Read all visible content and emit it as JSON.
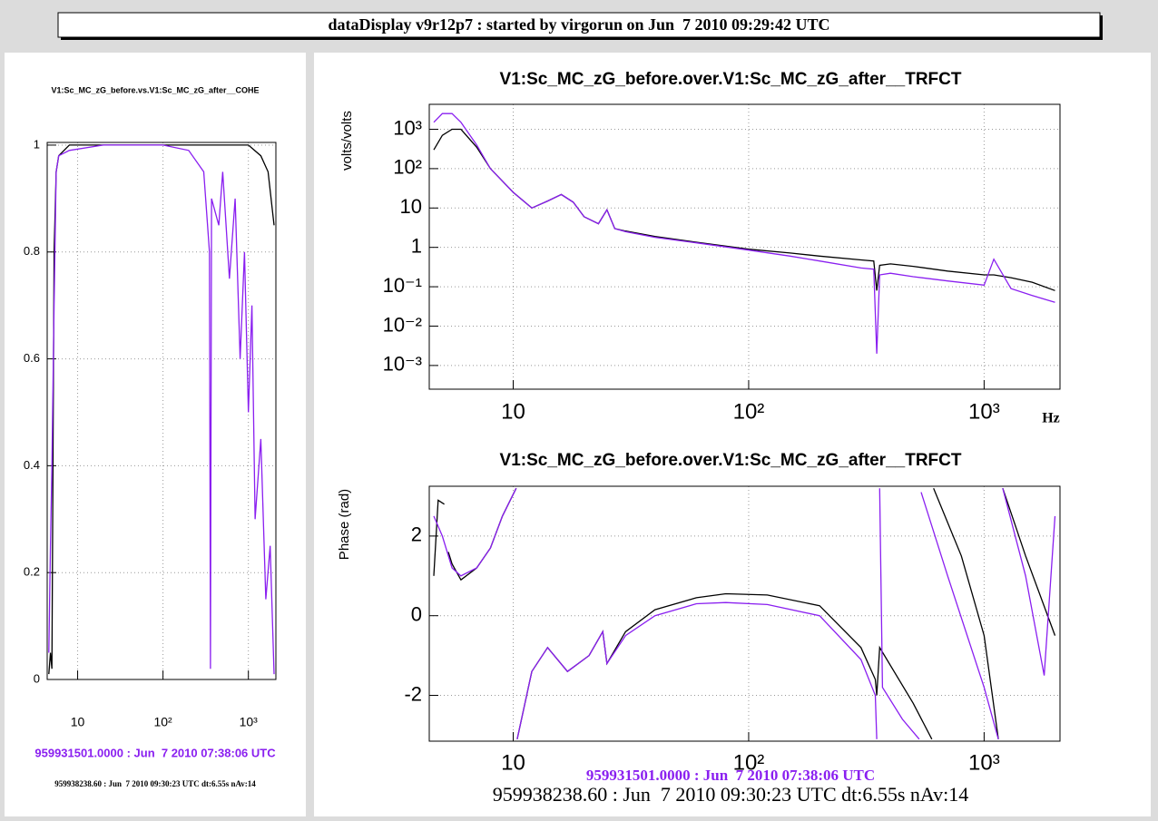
{
  "header": {
    "title": "dataDisplay v9r12p7 : started by virgorun on Jun  7 2010 09:29:42 UTC"
  },
  "chart_data": [
    {
      "type": "line",
      "title": "V1:Sc_MC_zG_before.vs.V1:Sc_MC_zG_after__COHE",
      "xscale": "log",
      "yscale": "linear",
      "grid": true,
      "xlim": [
        4.4,
        2100
      ],
      "ylim": [
        0,
        1.005
      ],
      "xticks": [
        10,
        {
          "value": 100,
          "label": "10²"
        },
        {
          "value": 1000,
          "label": "10³"
        }
      ],
      "yticks": [
        0,
        0.2,
        0.4,
        0.6,
        0.8,
        1
      ],
      "series": [
        {
          "name": "959938238.60 : Jun  7 2010 09:30:23 UTC dt:6.55s nAv:14",
          "color": "#000000",
          "x": [
            4.6,
            4.8,
            5,
            5.3,
            5.6,
            6,
            8,
            100,
            500,
            1000,
            1400,
            1700,
            2000
          ],
          "values": [
            0.01,
            0.05,
            0.02,
            0.8,
            0.95,
            0.98,
            1,
            1,
            1,
            1,
            0.98,
            0.95,
            0.85
          ]
        },
        {
          "name": "959931501.0000 : Jun  7 2010 07:38:06 UTC",
          "color": "#8a1ff0",
          "x": [
            4.6,
            4.8,
            5,
            5.3,
            5.6,
            6,
            8,
            20,
            100,
            200,
            300,
            350,
            360,
            370,
            450,
            500,
            600,
            700,
            800,
            900,
            1000,
            1100,
            1200,
            1400,
            1600,
            1800,
            2000
          ],
          "values": [
            0.05,
            0.25,
            0.4,
            0.7,
            0.95,
            0.98,
            0.99,
            1,
            1,
            0.99,
            0.95,
            0.8,
            0.02,
            0.9,
            0.85,
            0.95,
            0.75,
            0.9,
            0.6,
            0.8,
            0.5,
            0.7,
            0.3,
            0.45,
            0.15,
            0.25,
            0.01
          ]
        }
      ]
    },
    {
      "type": "line",
      "title": "V1:Sc_MC_zG_before.over.V1:Sc_MC_zG_after__TRFCT",
      "ylabel": "volts/volts",
      "xlabel": "Hz",
      "xscale": "log",
      "yscale": "log",
      "grid": true,
      "xlim": [
        4.4,
        2100
      ],
      "ylim": [
        0.00025,
        4300
      ],
      "xticks": [
        10,
        {
          "value": 100,
          "label": "10²"
        },
        {
          "value": 1000,
          "label": "10³"
        }
      ],
      "yticks": [
        {
          "value": 1000,
          "label": "10³"
        },
        {
          "value": 100,
          "label": "10²"
        },
        10,
        1,
        {
          "value": 0.1,
          "label": "10⁻¹"
        },
        {
          "value": 0.01,
          "label": "10⁻²"
        },
        {
          "value": 0.001,
          "label": "10⁻³"
        }
      ],
      "series": [
        {
          "color": "#000000",
          "x": [
            4.6,
            5,
            5.5,
            6,
            7,
            8,
            10,
            12,
            14,
            16,
            18,
            20,
            23,
            25,
            27,
            30,
            40,
            60,
            100,
            150,
            200,
            300,
            340,
            350,
            360,
            400,
            500,
            700,
            1000,
            1100,
            1300,
            1600,
            2000
          ],
          "values": [
            300,
            700,
            1000,
            1000,
            350,
            100,
            25,
            10,
            15,
            22,
            14,
            6,
            4,
            9,
            3,
            2.6,
            1.9,
            1.35,
            0.9,
            0.72,
            0.6,
            0.48,
            0.45,
            0.08,
            0.35,
            0.38,
            0.33,
            0.25,
            0.2,
            0.2,
            0.17,
            0.13,
            0.08
          ]
        },
        {
          "color": "#8a1ff0",
          "x": [
            4.6,
            5,
            5.5,
            6,
            7,
            8,
            10,
            12,
            14,
            16,
            18,
            20,
            23,
            25,
            27,
            30,
            40,
            60,
            100,
            150,
            200,
            300,
            340,
            350,
            360,
            400,
            500,
            700,
            1000,
            1100,
            1300,
            1600,
            2000
          ],
          "values": [
            1500,
            2500,
            2500,
            1500,
            400,
            100,
            25,
            10,
            15,
            22,
            14,
            6,
            4,
            9,
            3,
            2.5,
            1.8,
            1.3,
            0.85,
            0.6,
            0.45,
            0.3,
            0.28,
            0.002,
            0.2,
            0.22,
            0.18,
            0.14,
            0.11,
            0.5,
            0.09,
            0.06,
            0.04
          ]
        }
      ]
    },
    {
      "type": "line",
      "title": "V1:Sc_MC_zG_before.over.V1:Sc_MC_zG_after__TRFCT",
      "ylabel": "Phase (rad)",
      "xscale": "log",
      "yscale": "linear",
      "grid": true,
      "xlim": [
        4.4,
        2100
      ],
      "ylim": [
        -3.15,
        3.25
      ],
      "xticks": [
        10,
        {
          "value": 100,
          "label": "10²"
        },
        {
          "value": 1000,
          "label": "10³"
        }
      ],
      "yticks": [
        -2,
        0,
        2
      ],
      "series": [
        {
          "name": "959938238.60 : Jun  7 2010 09:30:23 UTC dt:6.55s nAv:14",
          "color": "#000000",
          "x": [
            4.6,
            4.8,
            5.1,
            5.12,
            5.15,
            5.2,
            5.3,
            5.5,
            6,
            7,
            8,
            9,
            10.3,
            10.35,
            10.4,
            12,
            14,
            17,
            21,
            24,
            25,
            30,
            40,
            60,
            80,
            120,
            200,
            300,
            345,
            350,
            360,
            500,
            600,
            605,
            610,
            800,
            1000,
            1150,
            1170,
            1200,
            1500,
            2000
          ],
          "values": [
            1.0,
            2.9,
            2.8,
            null,
            -3.1,
            null,
            1.6,
            1.3,
            0.9,
            1.2,
            1.7,
            2.5,
            3.2,
            null,
            -3.1,
            -1.4,
            -0.8,
            -1.4,
            -1.0,
            -0.4,
            -1.2,
            -0.4,
            0.15,
            0.45,
            0.55,
            0.52,
            0.25,
            -0.8,
            -1.6,
            -2.0,
            -0.8,
            -2.2,
            -3.1,
            null,
            3.2,
            1.5,
            -0.5,
            -3.1,
            null,
            3.2,
            1.5,
            -0.5
          ]
        },
        {
          "name": "959931501.0000 : Jun  7 2010 07:38:06 UTC",
          "color": "#8a1ff0",
          "x": [
            4.6,
            5,
            5.5,
            6,
            7,
            8,
            9,
            10.3,
            10.35,
            10.4,
            12,
            14,
            17,
            21,
            24,
            25,
            30,
            40,
            60,
            80,
            120,
            200,
            300,
            345,
            350,
            355,
            360,
            370,
            450,
            530,
            535,
            540,
            700,
            1000,
            1150,
            1170,
            1200,
            1500,
            1800,
            2000
          ],
          "values": [
            2.5,
            2.0,
            1.2,
            1.0,
            1.2,
            1.7,
            2.5,
            3.2,
            null,
            -3.1,
            -1.4,
            -0.8,
            -1.4,
            -1.0,
            -0.4,
            -1.2,
            -0.5,
            0.0,
            0.3,
            0.33,
            0.28,
            0.0,
            -1.1,
            -2.0,
            -3.1,
            null,
            3.2,
            -1.8,
            -2.6,
            -3.1,
            null,
            3.1,
            1.0,
            -1.8,
            -3.1,
            null,
            3.2,
            1.0,
            -1.5,
            2.5
          ]
        }
      ]
    }
  ]
}
